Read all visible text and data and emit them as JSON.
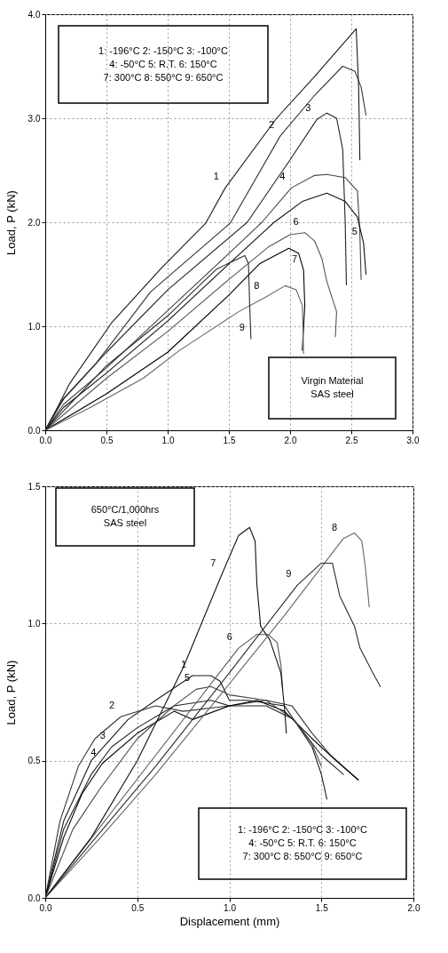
{
  "chart_data": [
    {
      "type": "line",
      "ylabel": "Load, P (kN)",
      "grid": true,
      "xlim": [
        0,
        3
      ],
      "ylim": [
        0,
        4
      ],
      "xticks": [
        {
          "value": 0,
          "label": "0.0"
        },
        {
          "value": 0.5,
          "label": "0.5"
        },
        {
          "value": 1,
          "label": "1.0"
        },
        {
          "value": 1.5,
          "label": "1.5"
        },
        {
          "value": 2,
          "label": "2.0"
        },
        {
          "value": 2.5,
          "label": "2.5"
        },
        {
          "value": 3,
          "label": "3.0"
        }
      ],
      "yticks": [
        {
          "value": 0,
          "label": "0.0"
        },
        {
          "value": 1,
          "label": "1.0"
        },
        {
          "value": 2,
          "label": "2.0"
        },
        {
          "value": 3,
          "label": "3.0"
        },
        {
          "value": 4,
          "label": "4.0"
        }
      ],
      "series": [
        {
          "color": "#1a1a1a",
          "x": [
            0,
            0.1,
            0.2,
            0.54,
            0.95,
            1.31,
            1.47,
            1.89,
            2.2,
            2.54,
            2.56,
            2.57
          ],
          "values": [
            0,
            0.22,
            0.45,
            1.03,
            1.56,
            1.99,
            2.33,
            3.0,
            3.4,
            3.86,
            3.3,
            2.6
          ]
        },
        {
          "color": "#333333",
          "x": [
            0,
            0.13,
            0.42,
            0.86,
            1.51,
            1.92,
            2.2,
            2.43,
            2.53,
            2.58,
            2.62
          ],
          "values": [
            0,
            0.28,
            0.65,
            1.33,
            1.99,
            2.83,
            3.22,
            3.5,
            3.45,
            3.3,
            3.03
          ]
        },
        {
          "color": "#222222",
          "x": [
            0,
            0.15,
            0.5,
            1.0,
            1.65,
            2.0,
            2.22,
            2.3,
            2.38,
            2.43,
            2.45,
            2.46
          ],
          "values": [
            0,
            0.3,
            0.75,
            1.35,
            2.0,
            2.6,
            2.99,
            3.05,
            3.0,
            2.7,
            2.0,
            1.4
          ]
        },
        {
          "color": "#444444",
          "x": [
            0,
            0.15,
            0.5,
            1.0,
            1.5,
            1.77,
            2.01,
            2.2,
            2.3,
            2.45,
            2.55,
            2.57,
            2.58
          ],
          "values": [
            0,
            0.25,
            0.6,
            1.15,
            1.7,
            2.0,
            2.33,
            2.45,
            2.46,
            2.43,
            2.3,
            1.9,
            1.45
          ]
        },
        {
          "color": "#111111",
          "x": [
            0,
            0.15,
            0.5,
            1.0,
            1.5,
            1.87,
            2.1,
            2.3,
            2.45,
            2.55,
            2.6,
            2.62
          ],
          "values": [
            0,
            0.22,
            0.55,
            1.05,
            1.6,
            2.0,
            2.2,
            2.28,
            2.2,
            2.05,
            1.8,
            1.5
          ]
        },
        {
          "color": "#555555",
          "x": [
            0,
            0.5,
            1.0,
            1.5,
            1.82,
            2.0,
            2.12,
            2.2,
            2.26,
            2.3,
            2.38,
            2.37
          ],
          "values": [
            0,
            0.5,
            0.95,
            1.45,
            1.76,
            1.88,
            1.9,
            1.82,
            1.65,
            1.43,
            1.14,
            0.9
          ]
        },
        {
          "color": "#000000",
          "x": [
            0,
            0.5,
            1.0,
            1.5,
            1.75,
            1.99,
            2.07,
            2.11,
            2.12,
            2.1
          ],
          "values": [
            0,
            0.35,
            0.75,
            1.3,
            1.6,
            1.75,
            1.7,
            1.54,
            1.2,
            0.77
          ]
        },
        {
          "color": "#666666",
          "x": [
            0,
            0.37,
            0.8,
            1.1,
            1.58,
            1.8,
            1.96,
            2.05,
            2.1,
            2.11
          ],
          "values": [
            0,
            0.22,
            0.5,
            0.77,
            1.14,
            1.28,
            1.39,
            1.35,
            1.2,
            0.74
          ]
        },
        {
          "color": "#2b2b2b",
          "x": [
            0,
            0.5,
            1.0,
            1.4,
            1.63,
            1.66,
            1.67,
            1.68
          ],
          "values": [
            0,
            0.62,
            1.1,
            1.55,
            1.68,
            1.6,
            1.2,
            0.88
          ]
        }
      ],
      "annotations": [
        "1: -196°C   2: -150°C   3: -100°C\n4: -50°C      5: R.T.        6: 150°C\n7: 300°C     8: 550°C     9: 650°C",
        "Virgin Material\nSAS steel",
        {
          "text": "1",
          "x": 1.47,
          "y": 2.33
        },
        {
          "text": "2",
          "x": 1.92,
          "y": 2.83
        },
        {
          "text": "3",
          "x": 2.22,
          "y": 2.99
        },
        {
          "text": "4",
          "x": 2.01,
          "y": 2.33
        },
        {
          "text": "5",
          "x": 2.6,
          "y": 1.8
        },
        {
          "text": "6",
          "x": 2.12,
          "y": 1.9
        },
        {
          "text": "7",
          "x": 2.11,
          "y": 1.54
        },
        {
          "text": "8",
          "x": 1.8,
          "y": 1.28
        },
        {
          "text": "9",
          "x": 1.68,
          "y": 0.88
        }
      ]
    },
    {
      "type": "line",
      "xlabel": "Displacement (mm)",
      "ylabel": "Load, P (kN)",
      "grid": true,
      "xlim": [
        0,
        2
      ],
      "ylim": [
        0,
        1.5
      ],
      "xticks": [
        {
          "value": 0,
          "label": "0.0"
        },
        {
          "value": 0.5,
          "label": "0.5"
        },
        {
          "value": 1,
          "label": "1.0"
        },
        {
          "value": 1.5,
          "label": "1.5"
        },
        {
          "value": 2,
          "label": "2.0"
        }
      ],
      "yticks": [
        {
          "value": 0,
          "label": "0.0"
        },
        {
          "value": 0.5,
          "label": "0.5"
        },
        {
          "value": 1,
          "label": "1.0"
        },
        {
          "value": 1.5,
          "label": "1.5"
        }
      ],
      "series": [
        {
          "color": "#1a1a1a",
          "x": [
            0,
            0.1,
            0.25,
            0.45,
            0.6,
            0.8,
            0.9,
            0.95,
            1.0,
            1.1,
            1.3,
            1.45,
            1.5,
            1.53
          ],
          "values": [
            0,
            0.28,
            0.5,
            0.65,
            0.72,
            0.81,
            0.81,
            0.79,
            0.72,
            0.72,
            0.7,
            0.55,
            0.45,
            0.36
          ]
        },
        {
          "color": "#333333",
          "x": [
            0,
            0.08,
            0.18,
            0.27,
            0.41,
            0.6,
            0.75,
            1.0,
            1.2,
            1.34,
            1.45,
            1.55,
            1.7
          ],
          "values": [
            0,
            0.28,
            0.48,
            0.58,
            0.66,
            0.7,
            0.68,
            0.7,
            0.72,
            0.7,
            0.6,
            0.52,
            0.43
          ]
        },
        {
          "color": "#222222",
          "x": [
            0,
            0.1,
            0.25,
            0.36,
            0.5,
            0.7,
            0.9,
            1.0,
            1.2,
            1.35,
            1.5,
            1.62
          ],
          "values": [
            0,
            0.25,
            0.45,
            0.55,
            0.62,
            0.7,
            0.72,
            0.7,
            0.7,
            0.65,
            0.52,
            0.45
          ]
        },
        {
          "color": "#000000",
          "x": [
            0,
            0.1,
            0.2,
            0.31,
            0.5,
            0.7,
            0.8,
            1.0,
            1.15,
            1.3,
            1.45,
            1.58,
            1.7
          ],
          "values": [
            0,
            0.22,
            0.38,
            0.49,
            0.6,
            0.68,
            0.65,
            0.7,
            0.72,
            0.68,
            0.58,
            0.5,
            0.43
          ]
        },
        {
          "color": "#444444",
          "x": [
            0,
            0.15,
            0.3,
            0.5,
            0.7,
            0.82,
            0.9,
            1.0,
            1.2,
            1.35,
            1.45,
            1.5
          ],
          "values": [
            0,
            0.25,
            0.4,
            0.58,
            0.7,
            0.76,
            0.77,
            0.74,
            0.72,
            0.65,
            0.56,
            0.48
          ]
        },
        {
          "color": "#555555",
          "x": [
            0,
            0.3,
            0.6,
            0.9,
            1.05,
            1.15,
            1.21,
            1.26,
            1.28,
            1.29
          ],
          "values": [
            0,
            0.26,
            0.52,
            0.78,
            0.91,
            0.96,
            0.96,
            0.93,
            0.85,
            0.76
          ]
        },
        {
          "color": "#111111",
          "x": [
            0,
            0.25,
            0.5,
            0.75,
            0.96,
            1.05,
            1.11,
            1.14,
            1.15,
            1.17,
            1.22,
            1.28,
            1.3,
            1.31
          ],
          "values": [
            0,
            0.22,
            0.5,
            0.84,
            1.18,
            1.32,
            1.35,
            1.3,
            1.14,
            0.99,
            0.94,
            0.82,
            0.69,
            0.6
          ]
        },
        {
          "color": "#666666",
          "x": [
            0,
            0.3,
            0.6,
            1.0,
            1.3,
            1.62,
            1.68,
            1.72,
            1.74,
            1.76
          ],
          "values": [
            0,
            0.22,
            0.45,
            0.78,
            1.03,
            1.31,
            1.33,
            1.3,
            1.2,
            1.06
          ]
        },
        {
          "color": "#2b2b2b",
          "x": [
            0,
            0.3,
            0.6,
            1.0,
            1.37,
            1.5,
            1.56,
            1.6,
            1.68,
            1.71,
            1.78,
            1.82
          ],
          "values": [
            0,
            0.24,
            0.48,
            0.82,
            1.14,
            1.22,
            1.22,
            1.1,
            0.99,
            0.91,
            0.82,
            0.77
          ]
        }
      ],
      "annotations": [
        "650°C/1,000hrs\nSAS steel",
        "1: -196°C   2: -150°C   3: -100°C\n4: -50°C      5: R.T.        6: 150°C\n7: 300°C     8: 550°C     9: 650°C",
        {
          "text": "1",
          "x": 0.8,
          "y": 0.81
        },
        {
          "text": "2",
          "x": 0.41,
          "y": 0.66
        },
        {
          "text": "3",
          "x": 0.36,
          "y": 0.55
        },
        {
          "text": "4",
          "x": 0.31,
          "y": 0.49
        },
        {
          "text": "5",
          "x": 0.82,
          "y": 0.76
        },
        {
          "text": "6",
          "x": 1.05,
          "y": 0.91
        },
        {
          "text": "7",
          "x": 0.96,
          "y": 1.18
        },
        {
          "text": "8",
          "x": 1.62,
          "y": 1.31
        },
        {
          "text": "9",
          "x": 1.37,
          "y": 1.14
        }
      ]
    }
  ]
}
